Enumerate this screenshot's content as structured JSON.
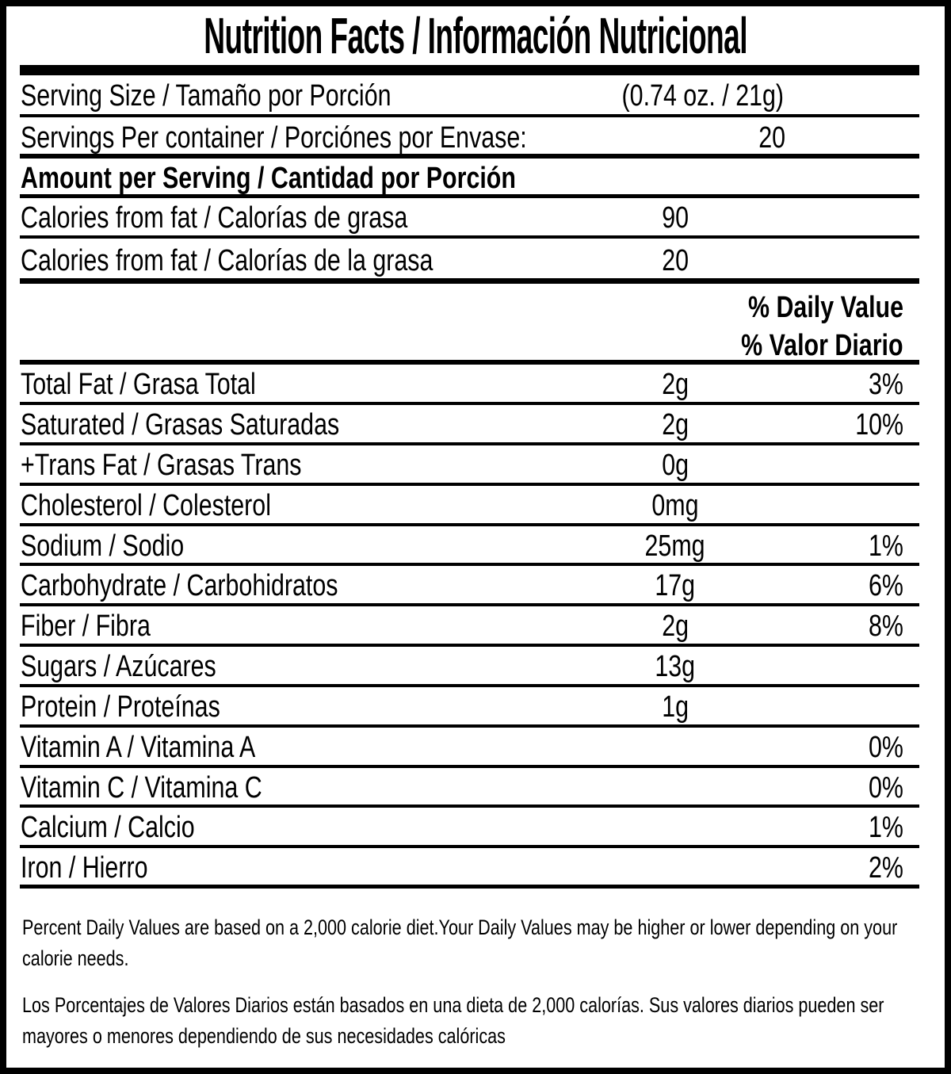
{
  "title": "Nutrition Facts / Información Nutricional",
  "serving": {
    "size_label": "Serving Size / Tamaño por Porción",
    "size_value": "(0.74 oz. / 21g)",
    "per_container_label": "Servings Per container / Porciónes por Envase:",
    "per_container_value": "20"
  },
  "amount_header": "Amount per Serving / Cantidad por Porción",
  "calories_rows": [
    {
      "label": "Calories from fat / Calorías de grasa",
      "amount": "90"
    },
    {
      "label": "Calories from fat / Calorías de la grasa",
      "amount": "20"
    }
  ],
  "daily_value_header": {
    "line1": "% Daily Value",
    "line2": "% Valor Diario"
  },
  "nutrients": [
    {
      "label": "Total Fat / Grasa Total",
      "amount": "2g",
      "dv": "3%"
    },
    {
      "label": "Saturated / Grasas Saturadas",
      "amount": "2g",
      "dv": "10%"
    },
    {
      "label": "+Trans Fat / Grasas Trans",
      "amount": "0g",
      "dv": ""
    },
    {
      "label": "Cholesterol / Colesterol",
      "amount": "0mg",
      "dv": ""
    },
    {
      "label": "Sodium / Sodio",
      "amount": "25mg",
      "dv": "1%"
    },
    {
      "label": "Carbohydrate / Carbohidratos",
      "amount": "17g",
      "dv": "6%"
    },
    {
      "label": "Fiber / Fibra",
      "amount": "2g",
      "dv": "8%"
    },
    {
      "label": "Sugars / Azúcares",
      "amount": "13g",
      "dv": ""
    },
    {
      "label": "Protein / Proteínas",
      "amount": "1g",
      "dv": ""
    },
    {
      "label": "Vitamin A / Vitamina A",
      "amount": "",
      "dv": "0%"
    },
    {
      "label": "Vitamin C / Vitamina C",
      "amount": "",
      "dv": "0%"
    },
    {
      "label": "Calcium / Calcio",
      "amount": "",
      "dv": "1%"
    },
    {
      "label": "Iron / Hierro",
      "amount": "",
      "dv": "2%"
    }
  ],
  "footnotes": {
    "english": "Percent Daily Values are based on a 2,000 calorie diet.Your Daily Values may be higher or lower depending on your calorie needs.",
    "spanish": "Los Porcentajes de Valores Diarios están basados en una dieta de 2,000 calorías. Sus valores diarios pueden ser mayores o menores dependiendo de sus necesidades calóricas"
  },
  "colors": {
    "text": "#000000",
    "background": "#ffffff",
    "border": "#000000"
  }
}
